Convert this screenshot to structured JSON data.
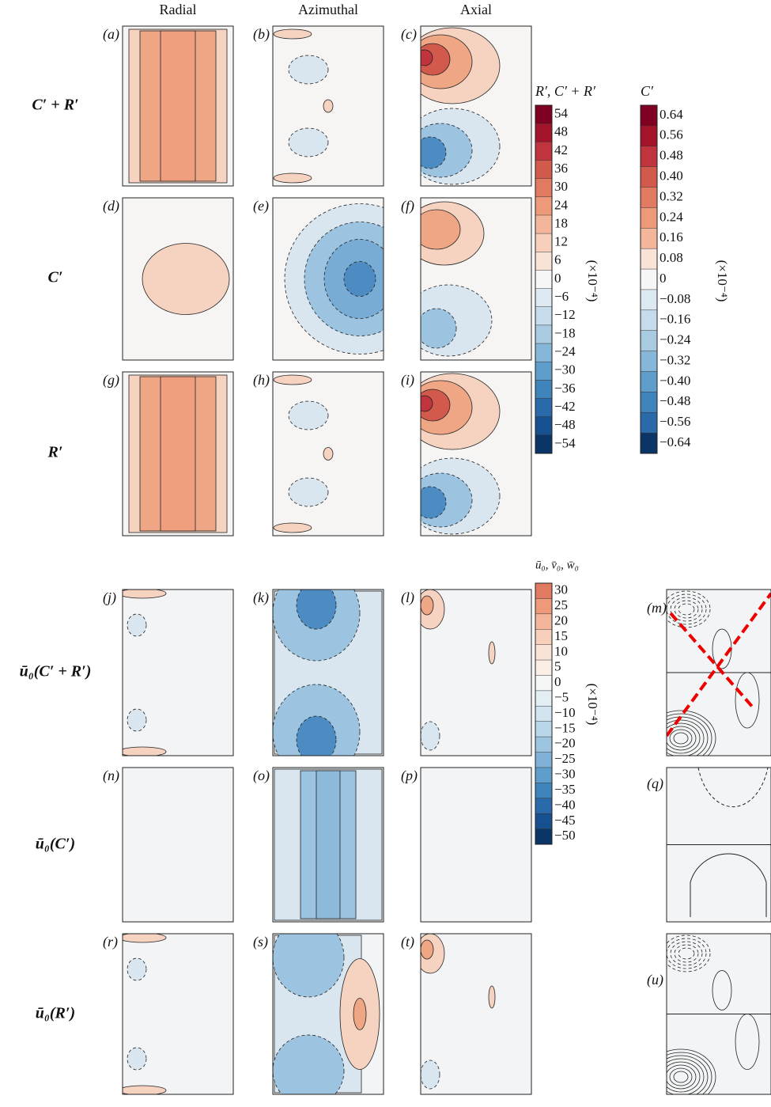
{
  "columns": [
    "Radial",
    "Azimuthal",
    "Axial"
  ],
  "rows": [
    "C′ + R′",
    "C′",
    "R′",
    "ū₀(C′ + R′)",
    "ū₀(C′)",
    "ū₀(R′)"
  ],
  "panels": [
    "(a)",
    "(b)",
    "(c)",
    "(d)",
    "(e)",
    "(f)",
    "(g)",
    "(h)",
    "(i)",
    "(j)",
    "(k)",
    "(l)",
    "(m)",
    "(n)",
    "(o)",
    "(p)",
    "(q)",
    "(r)",
    "(s)",
    "(t)",
    "(u)"
  ],
  "colorbars": [
    {
      "title": "R′, C′ + R′",
      "multiplier": "(×10⁻⁴)",
      "labels": [
        "54",
        "48",
        "42",
        "36",
        "30",
        "24",
        "18",
        "12",
        "6",
        "0",
        "−6",
        "−12",
        "−18",
        "−24",
        "−30",
        "−36",
        "−42",
        "−48",
        "−54"
      ],
      "colors": [
        "#7f0020",
        "#a3142b",
        "#c0343d",
        "#d25a4d",
        "#e07a60",
        "#ec9a7a",
        "#f4b69b",
        "#f8cfba",
        "#f9e3d6",
        "#f6f6f6",
        "#dde9f1",
        "#c6dbeb",
        "#a8cbe2",
        "#86b6d8",
        "#5f9dca",
        "#3f84bb",
        "#2a6aaa",
        "#17508f",
        "#0b3467"
      ]
    },
    {
      "title": "C′",
      "multiplier": "(×10⁻⁴)",
      "labels": [
        "0.64",
        "0.56",
        "0.48",
        "0.40",
        "0.32",
        "0.24",
        "0.16",
        "0.08",
        "0",
        "−0.08",
        "−0.16",
        "−0.24",
        "−0.32",
        "−0.40",
        "−0.48",
        "−0.56",
        "−0.64"
      ],
      "colors": [
        "#7f0020",
        "#a3142b",
        "#c0343d",
        "#d25a4d",
        "#e07a60",
        "#ec9a7a",
        "#f4b69b",
        "#f9e3d6",
        "#f6f6f6",
        "#dde9f1",
        "#c6dbeb",
        "#a8cbe2",
        "#86b6d8",
        "#5f9dca",
        "#3f84bb",
        "#2a6aaa",
        "#0b3467"
      ]
    },
    {
      "title": "ū₀, v̄₀, w̄₀",
      "multiplier": "(×10⁻⁴)",
      "labels": [
        "30",
        "25",
        "20",
        "15",
        "10",
        "5",
        "0",
        "−5",
        "−10",
        "−15",
        "−20",
        "−25",
        "−30",
        "−35",
        "−40",
        "−45",
        "−50"
      ],
      "colors": [
        "#e07a60",
        "#ec9a7a",
        "#f4b69b",
        "#f8cfba",
        "#f9e3d6",
        "#fbeee6",
        "#f4f5f6",
        "#e3edf4",
        "#d1e4f0",
        "#b9d6ea",
        "#9dc5e0",
        "#7fb2d6",
        "#5f9dca",
        "#3f84bb",
        "#2a6aaa",
        "#17508f",
        "#0b3467"
      ]
    }
  ]
}
